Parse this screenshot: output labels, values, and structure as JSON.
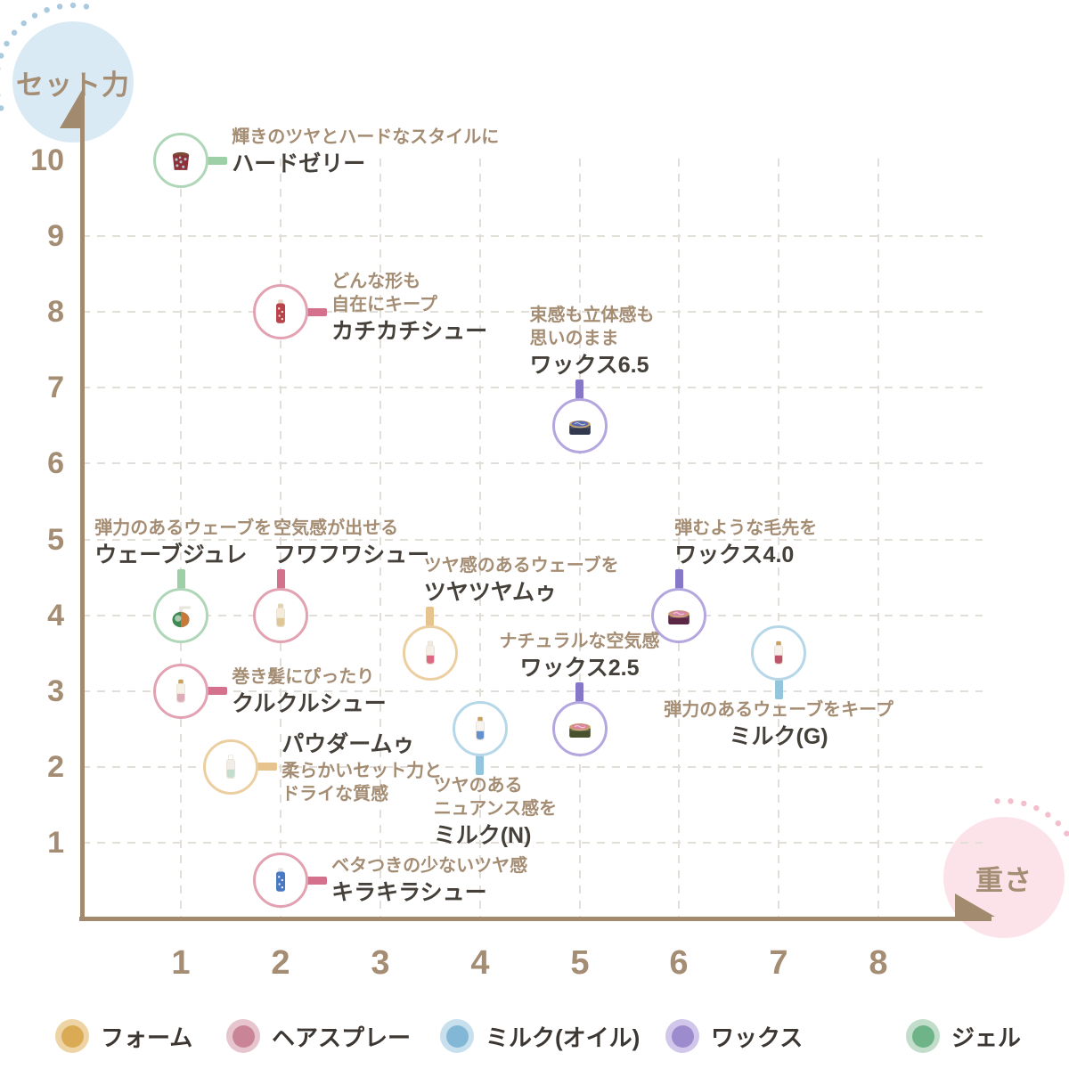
{
  "axes": {
    "y_label": "セット力",
    "x_label": "重さ",
    "y_ticks": [
      "10",
      "9",
      "8",
      "7",
      "6",
      "5",
      "4",
      "3",
      "2",
      "1"
    ],
    "x_ticks": [
      "1",
      "2",
      "3",
      "4",
      "5",
      "6",
      "7",
      "8"
    ],
    "axis_color": "#a28a6f",
    "grid_color": "#e2ded8",
    "tick_color": "#a58d74",
    "y_bubble_color": "#daeaf4",
    "x_bubble_color": "#fce3ea",
    "y_dots_color": "#a9cadf",
    "x_dots_color": "#f3bfcd"
  },
  "legend": {
    "items": [
      {
        "label": "フォーム",
        "key": "foam",
        "dot": "#dbaa55",
        "ring": "#eed4a4"
      },
      {
        "label": "ヘアスプレー",
        "key": "spray",
        "dot": "#ca8498",
        "ring": "#e6c5cf"
      },
      {
        "label": "ミルク(オイル)",
        "key": "milk",
        "dot": "#82b8d6",
        "ring": "#c8e0ee"
      },
      {
        "label": "ワックス",
        "key": "wax",
        "dot": "#9c8bcd",
        "ring": "#d1c7ea"
      },
      {
        "label": "ジェル",
        "key": "gel",
        "dot": "#6fb388",
        "ring": "#c2ddca"
      }
    ]
  },
  "category_style": {
    "foam": {
      "border": "#eccfa0",
      "connector": "#e7c38d"
    },
    "spray": {
      "border": "#e2a2b2",
      "connector": "#d4718c"
    },
    "milk": {
      "border": "#b6d7e8",
      "connector": "#93c5dc"
    },
    "wax": {
      "border": "#b4a6de",
      "connector": "#8677c8"
    },
    "gel": {
      "border": "#afd6b7",
      "connector": "#9ed0a8"
    }
  },
  "chart_data": {
    "type": "scatter",
    "title": "",
    "xlabel": "重さ",
    "ylabel": "セット力",
    "xlim": [
      0,
      8.8
    ],
    "ylim": [
      0,
      10.8
    ],
    "grid": "dashed",
    "legend_position": "bottom",
    "points": [
      {
        "name": "ハードゼリー",
        "description": "輝きのツヤとハードなスタイルに",
        "category": "gel",
        "category_label": "ジェル",
        "x": 1,
        "y": 10,
        "icon": {
          "kind": "jar",
          "body": "#8e3038",
          "accent": "#b9d6de",
          "cap": "#7b4a33"
        },
        "label": {
          "side": "right",
          "dy": -10
        }
      },
      {
        "name": "カチカチシュー",
        "description": "どんな形も\n自在にキープ",
        "category": "spray",
        "category_label": "ヘアスプレー",
        "x": 2,
        "y": 8,
        "icon": {
          "kind": "spray",
          "body": "#b8434a",
          "accent": "#f3e9e2",
          "cap": "#e7d6c0"
        },
        "label": {
          "side": "right",
          "dy": -5
        }
      },
      {
        "name": "ワックス6.5",
        "description": "束感も立体感も\n思いのまま",
        "category": "wax",
        "category_label": "ワックス",
        "x": 5,
        "y": 6.5,
        "icon": {
          "kind": "tin",
          "body": "#32394f",
          "accent": "#5a6ab0",
          "cap": "#c99f63"
        },
        "label": {
          "side": "top",
          "dx": -56
        }
      },
      {
        "name": "ウェーブジュレ",
        "description": "弾力のあるウェーブを",
        "category": "gel",
        "category_label": "ジェル",
        "x": 1,
        "y": 4,
        "icon": {
          "kind": "pump",
          "body": "#3f8a54",
          "accent": "#d8763a",
          "cap": "#e9e5dc"
        },
        "label": {
          "side": "top",
          "dx": -97
        }
      },
      {
        "name": "フワフワシュー",
        "description": "空気感が出せる",
        "category": "spray",
        "category_label": "ヘアスプレー",
        "x": 2,
        "y": 4,
        "icon": {
          "kind": "bottle",
          "body": "#f3ecdb",
          "accent": "#d9c08b",
          "cap": "#e2d2ae"
        },
        "label": {
          "side": "top",
          "dx": -8
        }
      },
      {
        "name": "ツヤツヤムゥ",
        "description": "ツヤ感のあるウェーブを",
        "category": "foam",
        "category_label": "フォーム",
        "x": 3.5,
        "y": 3.5,
        "icon": {
          "kind": "bottle",
          "body": "#f4f0e8",
          "accent": "#d8506e",
          "cap": "#f0ece4"
        },
        "label": {
          "side": "top",
          "dx": -7
        }
      },
      {
        "name": "ワックス4.0",
        "description": "弾むような毛先を",
        "category": "wax",
        "category_label": "ワックス",
        "x": 6,
        "y": 4,
        "icon": {
          "kind": "tin",
          "body": "#5c2745",
          "accent": "#d487a8",
          "cap": "#c99f63"
        },
        "label": {
          "side": "top",
          "dx": -5
        }
      },
      {
        "name": "ミルク(G)",
        "description": "弾力のあるウェーブをキープ",
        "category": "milk",
        "category_label": "ミルク(オイル)",
        "x": 7,
        "y": 3.5,
        "icon": {
          "kind": "bottle",
          "body": "#f6f1ea",
          "accent": "#b23a52",
          "cap": "#c9a05e"
        },
        "label": {
          "side": "bottom",
          "align": "center"
        }
      },
      {
        "name": "クルクルシュー",
        "description": "巻き髪にぴったり",
        "category": "spray",
        "category_label": "ヘアスプレー",
        "x": 1,
        "y": 3,
        "icon": {
          "kind": "bottle",
          "body": "#f6f2ea",
          "accent": "#d8a0b0",
          "cap": "#caa05a"
        },
        "label": {
          "side": "right"
        }
      },
      {
        "name": "ワックス2.5",
        "description": "ナチュラルな空気感",
        "category": "wax",
        "category_label": "ワックス",
        "x": 5,
        "y": 2.5,
        "icon": {
          "kind": "tin",
          "body": "#48512f",
          "accent": "#d8879e",
          "cap": "#c99f63"
        },
        "label": {
          "side": "top",
          "align": "center"
        }
      },
      {
        "name": "ミルク(N)",
        "description": "ツヤのある\nニュアンス感を",
        "category": "milk",
        "category_label": "ミルク(オイル)",
        "x": 4,
        "y": 2.5,
        "icon": {
          "kind": "bottle",
          "body": "#f7f4ef",
          "accent": "#4a7ec8",
          "cap": "#c9a05e"
        },
        "label": {
          "side": "bottom",
          "dx": -52
        }
      },
      {
        "name": "パウダームゥ",
        "description": "柔らかいセット力と\nドライな質感",
        "category": "foam",
        "category_label": "フォーム",
        "x": 1.5,
        "y": 2,
        "icon": {
          "kind": "bottle",
          "body": "#f2ede6",
          "accent": "#bcd8c8",
          "cap": "#ffffff"
        },
        "label": {
          "side": "right",
          "name_first": true,
          "dy": 2
        }
      },
      {
        "name": "キラキラシュー",
        "description": "ベタつきの少ないツヤ感",
        "category": "spray",
        "category_label": "ヘアスプレー",
        "x": 2,
        "y": 0.5,
        "icon": {
          "kind": "spray",
          "body": "#4a79c4",
          "accent": "#f2f4f8",
          "cap": "#e8e8e8"
        },
        "label": {
          "side": "right"
        }
      }
    ]
  }
}
